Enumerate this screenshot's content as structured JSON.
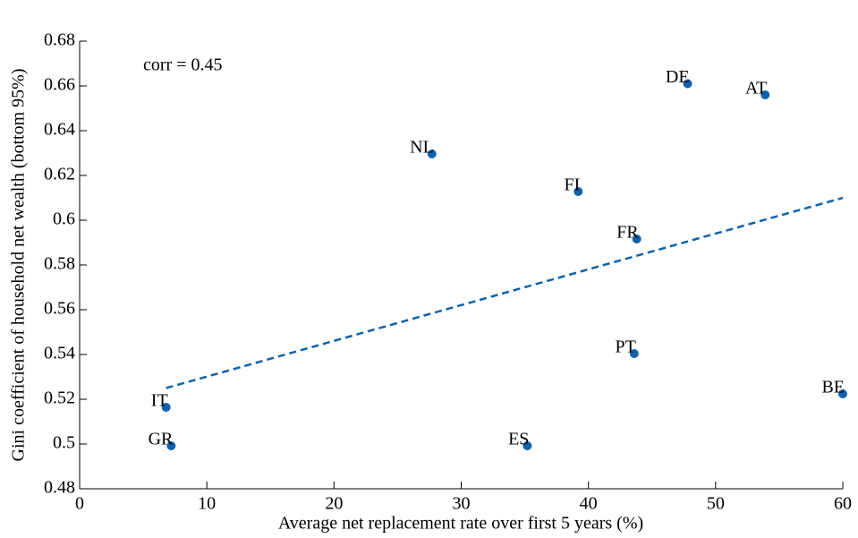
{
  "chart_data": {
    "type": "scatter",
    "xlabel": "Average net replacement rate over first 5 years (%)",
    "ylabel": "Gini coefficient of household net wealth (bottom 95%)",
    "annotation": "corr = 0.45",
    "labels": [
      "DE",
      "AT",
      "NL",
      "FI",
      "FR",
      "PT",
      "BE",
      "IT",
      "GR",
      "ES"
    ],
    "x": [
      47.8,
      53.9,
      27.7,
      39.2,
      43.8,
      43.6,
      60,
      6.8,
      7.2,
      35.2
    ],
    "y": [
      0.661,
      0.656,
      0.6296,
      0.6128,
      0.5916,
      0.5404,
      0.5224,
      0.5164,
      0.4992,
      0.4992
    ],
    "color": "#0f62ac",
    "fit_line": {
      "x": [
        6.8,
        60
      ],
      "y": [
        0.525,
        0.61
      ],
      "color": "#0f62ac"
    },
    "xlim": [
      0,
      60
    ],
    "xticks": [
      0,
      10,
      20,
      30,
      40,
      50,
      60
    ],
    "ylim": [
      0.48,
      0.68
    ],
    "yticks": [
      0.48,
      0.5,
      0.52,
      0.54,
      0.56,
      0.58,
      0.6,
      0.62,
      0.64,
      0.66,
      0.68
    ]
  }
}
